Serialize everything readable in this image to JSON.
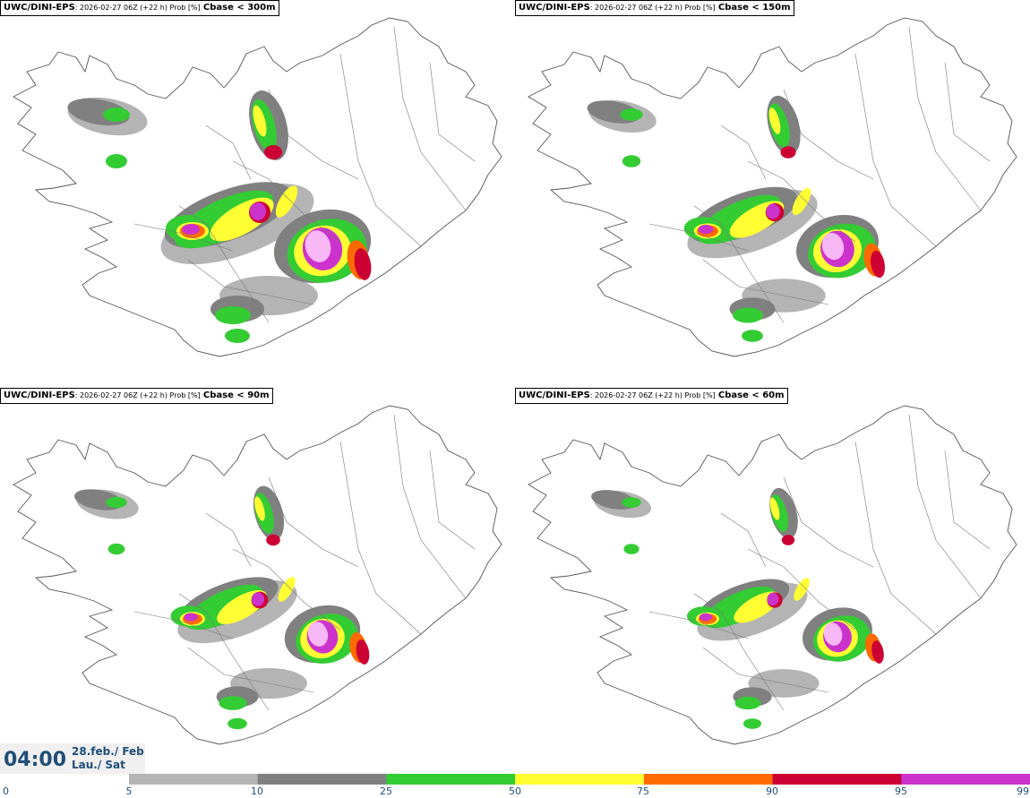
{
  "panels": [
    {
      "model": "UWC/DINI-EPS",
      "info": ": 2026-02-27 06Z (+22 h) Prob [%]",
      "threshold": "Cbase < 300m"
    },
    {
      "model": "UWC/DINI-EPS",
      "info": ": 2026-02-27 06Z (+22 h) Prob [%]",
      "threshold": "Cbase < 150m"
    },
    {
      "model": "UWC/DINI-EPS",
      "info": ": 2026-02-27 06Z (+22 h) Prob [%]",
      "threshold": "Cbase < 90m"
    },
    {
      "model": "UWC/DINI-EPS",
      "info": ": 2026-02-27 06Z (+22 h) Prob [%]",
      "threshold": "Cbase < 60m"
    }
  ],
  "valid_time": {
    "time": "04:00",
    "date": "28.feb./ Feb",
    "day": "Lau./ Sat"
  },
  "colorbar": {
    "ticks": [
      "0",
      "5",
      "10",
      "25",
      "50",
      "75",
      "90",
      "95",
      "99"
    ],
    "colors": [
      "#ffffff",
      "#b4b4b4",
      "#808080",
      "#33cc33",
      "#ffff33",
      "#ff6a00",
      "#cc0033",
      "#cc33cc",
      "#f7b8f5"
    ]
  }
}
